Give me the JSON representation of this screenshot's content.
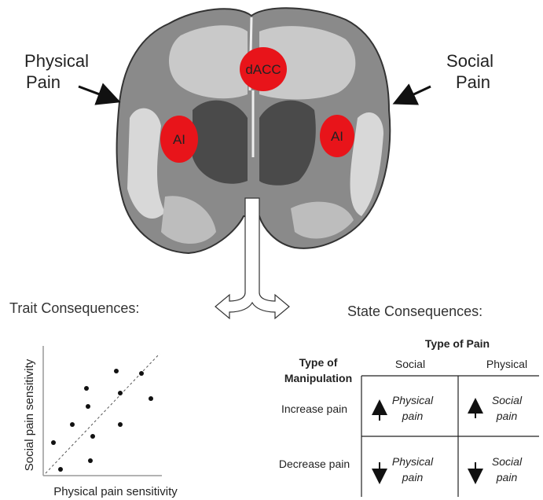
{
  "brain": {
    "left_label": [
      "Physical",
      "Pain"
    ],
    "right_label": [
      "Social",
      "Pain"
    ],
    "regions": [
      "dACC",
      "AI",
      "AI"
    ]
  },
  "trait": {
    "title": "Trait Consequences:",
    "x_label": "Physical pain sensitivity",
    "y_label": "Social pain sensitivity"
  },
  "state": {
    "title": "State Consequences:",
    "table": {
      "column_group": "Type of Pain",
      "row_group": [
        "Type of",
        "Manipulation"
      ],
      "columns": [
        "Social",
        "Physical"
      ],
      "rows": [
        {
          "label": "Increase pain",
          "cells": [
            [
              "Physical",
              "pain"
            ],
            [
              "Social",
              "pain"
            ]
          ]
        },
        {
          "label": "Decrease pain",
          "cells": [
            [
              "Physical",
              "pain"
            ],
            [
              "Social",
              "pain"
            ]
          ]
        }
      ]
    }
  }
}
